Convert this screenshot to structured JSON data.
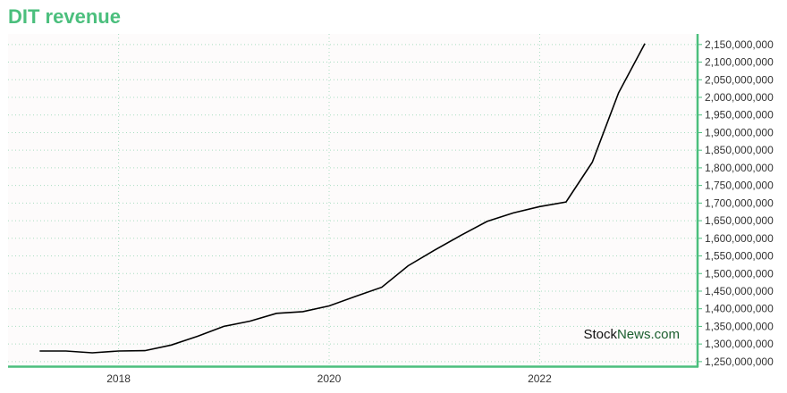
{
  "chart_title": "DIT revenue",
  "watermark": {
    "part1": "Stock",
    "part2": "News",
    "part3": ".com"
  },
  "colors": {
    "accent": "#4bbf7d",
    "line": "#000000",
    "grid": "#a8dcc0",
    "plot_bg": "#fdfbfb",
    "watermark_dark": "#1a5e2e"
  },
  "chart_data": {
    "type": "line",
    "title": "DIT revenue",
    "xlabel": "",
    "ylabel": "",
    "x_ticks": [
      "2018",
      "2020",
      "2022"
    ],
    "y_ticks": [
      1250000000,
      1300000000,
      1350000000,
      1400000000,
      1450000000,
      1500000000,
      1550000000,
      1600000000,
      1650000000,
      1700000000,
      1750000000,
      1800000000,
      1850000000,
      1900000000,
      1950000000,
      2000000000,
      2050000000,
      2100000000,
      2150000000
    ],
    "y_tick_labels": [
      "1,250,000,000",
      "1,300,000,000",
      "1,350,000,000",
      "1,400,000,000",
      "1,450,000,000",
      "1,500,000,000",
      "1,550,000,000",
      "1,600,000,000",
      "1,650,000,000",
      "1,700,000,000",
      "1,750,000,000",
      "1,800,000,000",
      "1,850,000,000",
      "1,900,000,000",
      "1,950,000,000",
      "2,000,000,000",
      "2,050,000,000",
      "2,100,000,000",
      "2,150,000,000"
    ],
    "ylim": [
      1237000000,
      2180000000
    ],
    "xlim": [
      2016.95,
      2023.5
    ],
    "grid": true,
    "y_axis_position": "right",
    "series": [
      {
        "x": [
          2017.25,
          2017.5,
          2017.75,
          2018.0,
          2018.25,
          2018.5,
          2018.75,
          2019.0,
          2019.25,
          2019.5,
          2019.75,
          2020.0,
          2020.25,
          2020.5,
          2020.75,
          2021.0,
          2021.25,
          2021.5,
          2021.75,
          2022.0,
          2022.25,
          2022.5,
          2022.75,
          2023.0
        ],
        "values": [
          1280000000,
          1280000000,
          1275000000,
          1280000000,
          1281000000,
          1297000000,
          1322000000,
          1350000000,
          1365000000,
          1387000000,
          1392000000,
          1408000000,
          1435000000,
          1461000000,
          1522000000,
          1566000000,
          1608000000,
          1648000000,
          1672000000,
          1690000000,
          1703000000,
          1816000000,
          2013000000,
          2153000000
        ]
      }
    ]
  }
}
